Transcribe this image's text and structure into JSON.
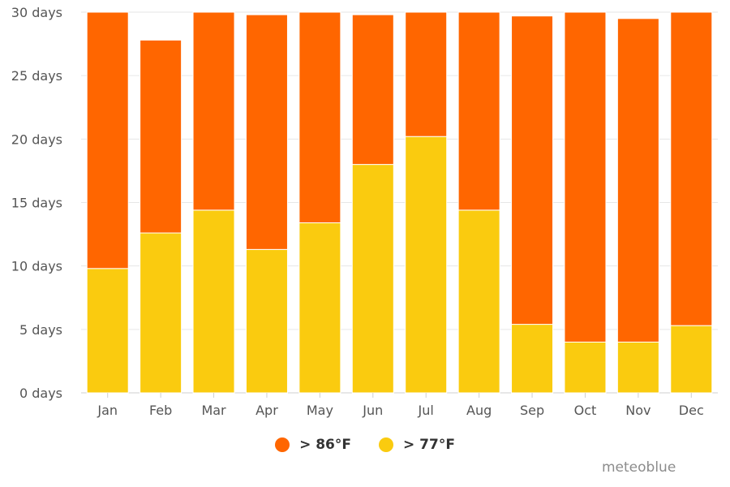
{
  "chart_data": {
    "type": "bar",
    "stacked": true,
    "categories": [
      "Jan",
      "Feb",
      "Mar",
      "Apr",
      "May",
      "Jun",
      "Jul",
      "Aug",
      "Sep",
      "Oct",
      "Nov",
      "Dec"
    ],
    "series": [
      {
        "name": "> 77°F",
        "color": "#facb0f",
        "values": [
          9.8,
          12.6,
          14.4,
          11.3,
          13.4,
          18.0,
          20.2,
          14.4,
          5.4,
          4.0,
          4.0,
          5.3
        ]
      },
      {
        "name": "> 86°F",
        "color": "#ff6600",
        "values": [
          20.2,
          15.2,
          15.6,
          18.5,
          16.6,
          11.8,
          9.8,
          15.6,
          24.3,
          26.0,
          25.5,
          24.7
        ]
      }
    ],
    "y_ticks": [
      "0 days",
      "5 days",
      "10 days",
      "15 days",
      "20 days",
      "25 days",
      "30 days"
    ],
    "ylim": [
      0,
      30
    ],
    "grid": true,
    "legend_position": "bottom-center"
  },
  "legend": {
    "items": [
      {
        "label": "> 86°F",
        "color": "#ff6600"
      },
      {
        "label": "> 77°F",
        "color": "#facb0f"
      }
    ]
  },
  "credit": "meteoblue"
}
